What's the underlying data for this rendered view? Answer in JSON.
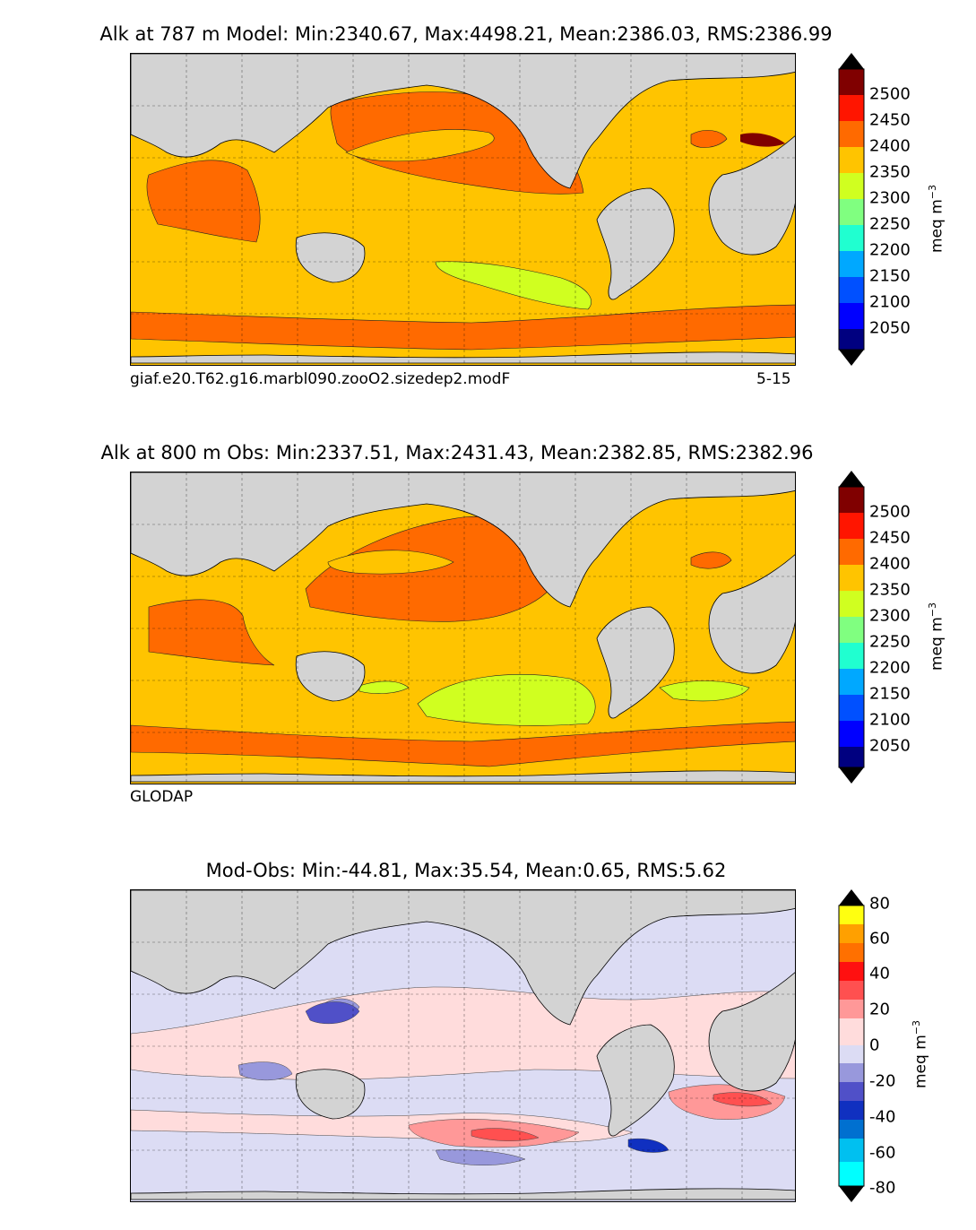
{
  "panels": [
    {
      "title": "Alk at 787 m Model: Min:2340.67, Max:4498.21, Mean:2386.03, RMS:2386.99",
      "caption_left": "giaf.e20.T62.g16.marbl090.zooO2.sizedep2.modF",
      "caption_right": "5-15",
      "colorbar": {
        "unit": "meq m",
        "unit_exp": "−3",
        "ticks": [
          "2500",
          "2450",
          "2400",
          "2350",
          "2300",
          "2250",
          "2200",
          "2150",
          "2100",
          "2050"
        ],
        "colors": [
          "#000080",
          "#0000ff",
          "#0050ff",
          "#00a8ff",
          "#20ffd0",
          "#80ff80",
          "#d0ff20",
          "#ffc400",
          "#ff6a00",
          "#ff1500",
          "#800000"
        ],
        "extend_low": "#000000",
        "extend_high": "#000000"
      }
    },
    {
      "title": "Alk at 800 m Obs: Min:2337.51, Max:2431.43, Mean:2382.85, RMS:2382.96",
      "caption_left": "GLODAP",
      "colorbar": {
        "unit": "meq m",
        "unit_exp": "−3",
        "ticks": [
          "2500",
          "2450",
          "2400",
          "2350",
          "2300",
          "2250",
          "2200",
          "2150",
          "2100",
          "2050"
        ],
        "colors": [
          "#000080",
          "#0000ff",
          "#0050ff",
          "#00a8ff",
          "#20ffd0",
          "#80ff80",
          "#d0ff20",
          "#ffc400",
          "#ff6a00",
          "#ff1500",
          "#800000"
        ],
        "extend_low": "#000000",
        "extend_high": "#000000"
      }
    },
    {
      "title": "Mod-Obs: Min:-44.81, Max:35.54, Mean:0.65, RMS:5.62",
      "colorbar": {
        "unit": "meq m",
        "unit_exp": "−3",
        "ticks": [
          "80",
          "60",
          "40",
          "20",
          "0",
          "-20",
          "-40",
          "-60",
          "-80"
        ],
        "colors": [
          "#00ffff",
          "#00c0f0",
          "#0070d0",
          "#1030c0",
          "#5050c8",
          "#9898dc",
          "#dcdcf4",
          "#ffdcdc",
          "#ff9898",
          "#ff5050",
          "#ff1010",
          "#ff7000",
          "#ffa000",
          "#ffff10"
        ],
        "extend_low": "#000000",
        "extend_high": "#000000"
      }
    }
  ],
  "map_style": {
    "land": "#d3d3d3",
    "coast": "#000000",
    "nodata": "#ffffff"
  }
}
